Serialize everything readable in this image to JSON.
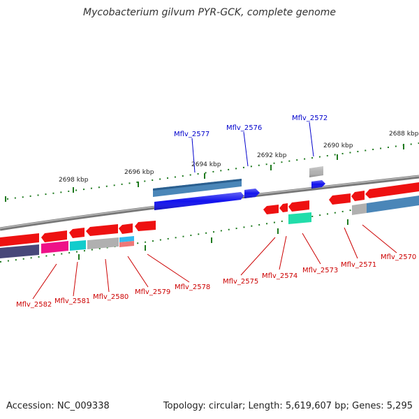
{
  "title": "Mycobacterium gilvum PYR-GCK, complete genome",
  "footer": {
    "accession": "Accession: NC_009338",
    "topology": "Topology: circular; Length: 5,619,607 bp; Genes: 5,295"
  },
  "colors": {
    "backbone": "#888888",
    "tick": "#1f7a1f",
    "upper_label": "#0000cc",
    "lower_label": "#cc0000",
    "red": "#ee1111",
    "blue": "#1111ee",
    "steelblue": "#4a86b8",
    "gray": "#b0b0b0",
    "slate": "#48487a",
    "magenta": "#ee1188",
    "cyan": "#11cccc",
    "teal": "#22ddaa",
    "skyblue": "#33bbee",
    "salmon": "#ee7777"
  },
  "tick_labels": [
    "2698 kbp",
    "2696 kbp",
    "2694 kbp",
    "2692 kbp",
    "2690 kbp",
    "2688 kbp"
  ],
  "upper_labels": [
    "Mflv_2577",
    "Mflv_2576",
    "Mflv_2572"
  ],
  "lower_labels": [
    "Mflv_2582",
    "Mflv_2581",
    "Mflv_2580",
    "Mflv_2579",
    "Mflv_2578",
    "Mflv_2575",
    "Mflv_2574",
    "Mflv_2573",
    "Mflv_2571",
    "Mflv_2570"
  ]
}
